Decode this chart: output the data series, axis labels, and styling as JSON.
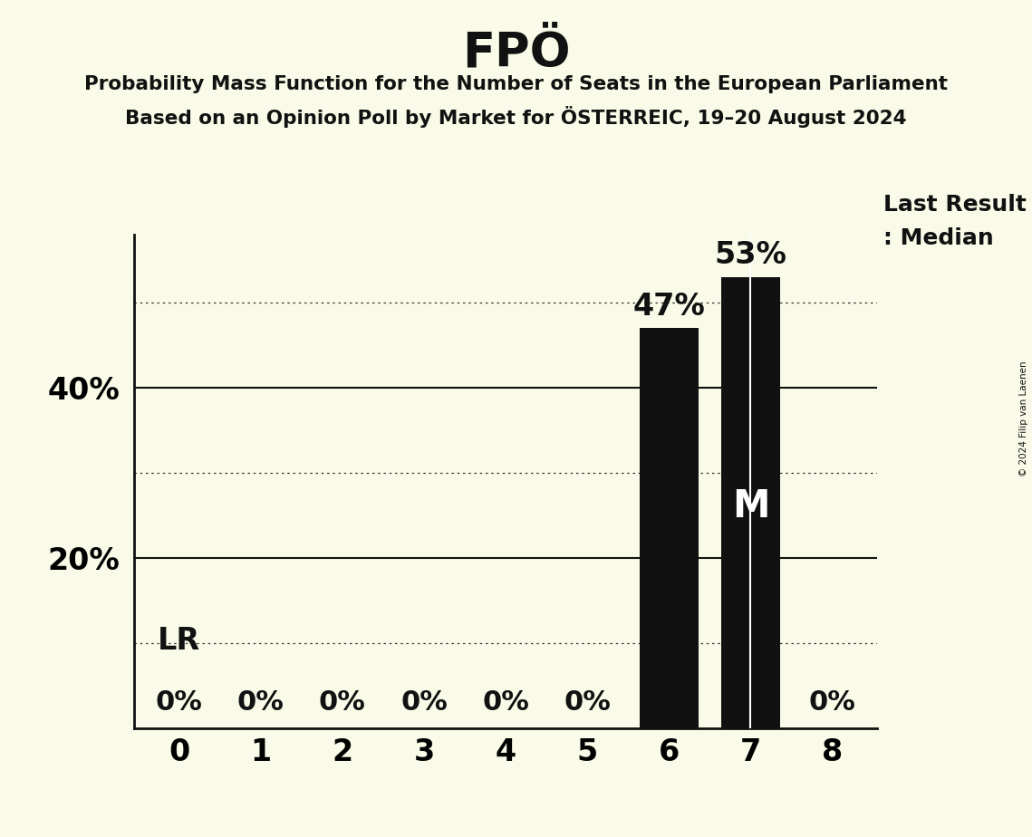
{
  "title": "FPÖ",
  "subtitle_line1": "Probability Mass Function for the Number of Seats in the European Parliament",
  "subtitle_line2": "Based on an Opinion Poll by Market for ÖSTERREIC, 19–20 August 2024",
  "copyright": "© 2024 Filip van Laenen",
  "categories": [
    0,
    1,
    2,
    3,
    4,
    5,
    6,
    7,
    8
  ],
  "values": [
    0,
    0,
    0,
    0,
    0,
    0,
    47,
    53,
    0
  ],
  "bar_color": "#111111",
  "background_color": "#fafae8",
  "yticks": [
    20,
    40
  ],
  "dotted_lines": [
    10,
    30,
    50
  ],
  "solid_lines": [
    20,
    40
  ],
  "ylim": [
    0,
    58
  ],
  "xlim_left": -0.55,
  "xlim_right": 8.55,
  "median_seat": 7,
  "last_result_seat": 6,
  "lr_label": "LR",
  "median_label": "M",
  "last_result_legend": "Last Result",
  "median_legend": ": Median",
  "bar_width": 0.72
}
